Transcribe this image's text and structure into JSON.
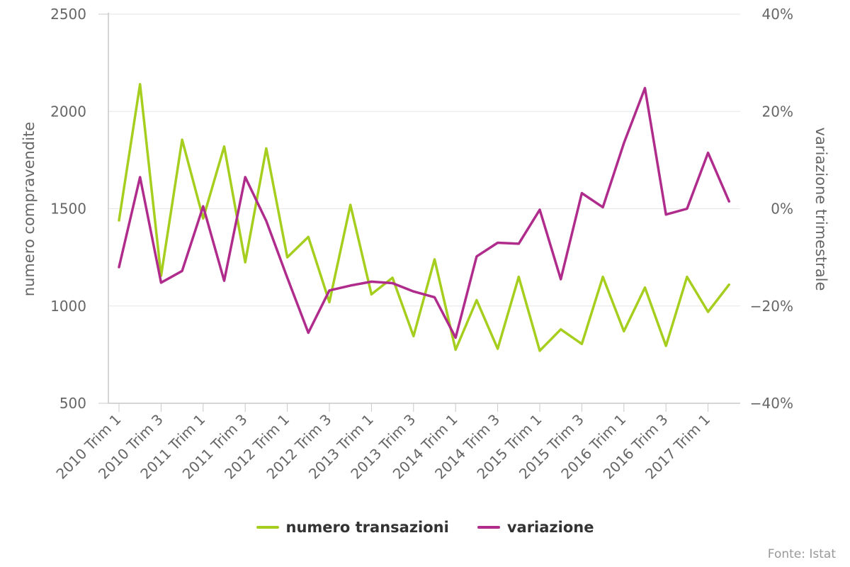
{
  "chart_data": {
    "type": "line",
    "categories": [
      "2010 Trim 1",
      "2010 Trim 2",
      "2010 Trim 3",
      "2010 Trim 4",
      "2011 Trim 1",
      "2011 Trim 2",
      "2011 Trim 3",
      "2011 Trim 4",
      "2012 Trim 1",
      "2012 Trim 2",
      "2012 Trim 3",
      "2012 Trim 4",
      "2013 Trim 1",
      "2013 Trim 2",
      "2013 Trim 3",
      "2013 Trim 4",
      "2014 Trim 1",
      "2014 Trim 2",
      "2014 Trim 3",
      "2014 Trim 4",
      "2015 Trim 1",
      "2015 Trim 2",
      "2015 Trim 3",
      "2015 Trim 4",
      "2016 Trim 1",
      "2016 Trim 2",
      "2016 Trim 3",
      "2016 Trim 4",
      "2017 Trim 1",
      "2017 Trim 2"
    ],
    "x_tick_labels": [
      "2010 Trim 1",
      "2010 Trim 3",
      "2011 Trim 1",
      "2011 Trim 3",
      "2012 Trim 1",
      "2012 Trim 3",
      "2013 Trim 1",
      "2013 Trim 3",
      "2014 Trim 1",
      "2014 Trim 3",
      "2015 Trim 1",
      "2015 Trim 3",
      "2016 Trim 1",
      "2016 Trim 3",
      "2017 Trim 1"
    ],
    "series": [
      {
        "name": "numero transazioni",
        "axis": "left",
        "color": "#a6ce1e",
        "values": [
          1440,
          2140,
          1155,
          1855,
          1450,
          1820,
          1225,
          1810,
          1250,
          1355,
          1020,
          1520,
          1060,
          1145,
          845,
          1240,
          775,
          1030,
          780,
          1150,
          770,
          880,
          805,
          1150,
          870,
          1095,
          795,
          1150,
          970,
          1110
        ]
      },
      {
        "name": "variazione",
        "axis": "right",
        "color": "#b02c8c",
        "values": [
          -12,
          6.5,
          -15.2,
          -12.8,
          0.5,
          -14.8,
          6.5,
          -2.5,
          -14.2,
          -25.5,
          -16.8,
          -15.8,
          -15.0,
          -15.3,
          -17.0,
          -18.2,
          -26.5,
          -9.8,
          -7.0,
          -7.2,
          -0.2,
          -14.5,
          3.2,
          0.3,
          13.5,
          24.8,
          -1.2,
          0.0,
          11.5,
          1.5
        ]
      }
    ],
    "y_left": {
      "title": "numero compravendite",
      "min": 500,
      "max": 2500,
      "ticks": [
        "2500",
        "2000",
        "1500",
        "1000",
        "500"
      ],
      "tick_values": [
        2500,
        2000,
        1500,
        1000,
        500
      ]
    },
    "y_right": {
      "title": "variazione trimestrale",
      "min": -40,
      "max": 40,
      "ticks": [
        "40%",
        "20%",
        "0%",
        "−20%",
        "−40%"
      ],
      "tick_values": [
        40,
        20,
        0,
        -20,
        -40
      ]
    },
    "grid": true,
    "legend_position": "bottom-center"
  },
  "credits": "Fonte: Istat"
}
